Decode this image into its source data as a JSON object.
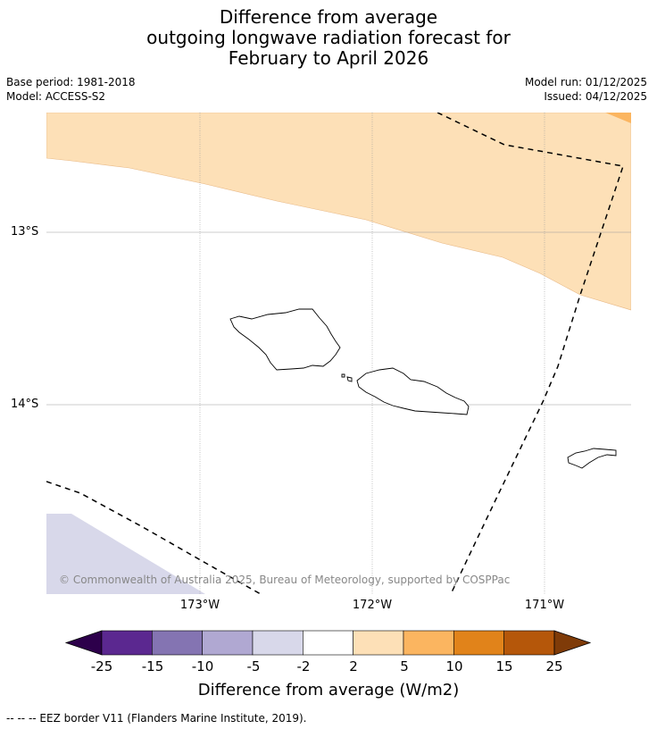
{
  "title": {
    "line1": "Difference from average",
    "line2": "outgoing longwave radiation forecast for",
    "line3": "February to April 2026"
  },
  "meta": {
    "base_period": "Base period: 1981-2018",
    "model": "Model: ACCESS-S2",
    "model_run": "Model run: 01/12/2025",
    "issued": "Issued: 04/12/2025"
  },
  "map": {
    "region": "Samoa",
    "lat_labels": [
      "13°S",
      "14°S"
    ],
    "lon_labels": [
      "173°W",
      "172°W",
      "171°W"
    ],
    "credit": "© Commonwealth of Australia 2025, Bureau of Meteorology, supported by COSPPac",
    "fill_colors": {
      "band_2_5": "#fde0b7",
      "band_5_10": "#fbb560",
      "band_neg5_neg2": "#d8d8ea"
    }
  },
  "colorbar": {
    "title": "Difference from average (W/m2)",
    "ticks": [
      "-25",
      "-15",
      "-10",
      "-5",
      "-2",
      "2",
      "5",
      "10",
      "15",
      "25"
    ],
    "colors": [
      "#5b2890",
      "#8474b2",
      "#b0a8d2",
      "#d8d8ea",
      "#ffffff",
      "#fde0b7",
      "#fbb560",
      "#e1831a",
      "#b5570a"
    ],
    "under_color": "#2d004b",
    "over_color": "#7f3b08"
  },
  "footnote": "--  --  -- EEZ border V11 (Flanders Marine Institute, 2019)."
}
